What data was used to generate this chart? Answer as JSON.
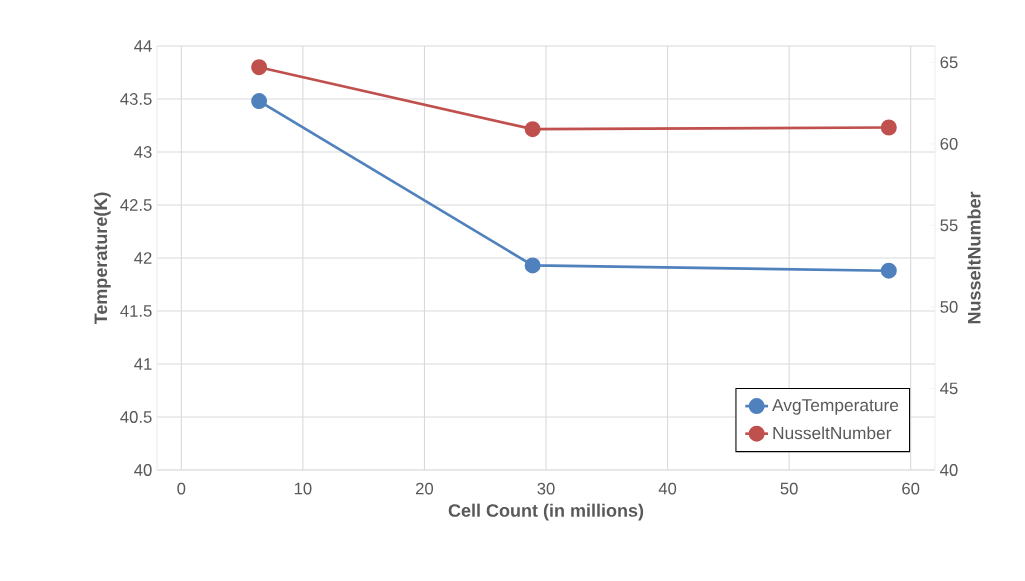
{
  "chart_data": {
    "type": "line",
    "xlabel": "Cell Count (in millions)",
    "ylabel": "Temperature(K)",
    "y2label": "NusseltNumber",
    "x": [
      6.4,
      28.9,
      58.2
    ],
    "series": [
      {
        "name": "AvgTemperature",
        "color": "#4f81bd",
        "values": [
          43.48,
          41.93,
          41.88
        ]
      },
      {
        "name": "NusseltNumber",
        "color": "#c0504d",
        "values": [
          64.7,
          60.9,
          61.0
        ],
        "axis": "y2"
      }
    ],
    "xlim": [
      -2,
      62
    ],
    "xticks": [
      0,
      10,
      20,
      30,
      40,
      50,
      60
    ],
    "ylim": [
      40,
      44
    ],
    "yticks": [
      40,
      40.5,
      41,
      41.5,
      42,
      42.5,
      43,
      43.5,
      44
    ],
    "y2lim": [
      40,
      66
    ],
    "y2ticks": [
      40,
      45,
      50,
      55,
      60,
      65
    ],
    "grid": true,
    "legend": "bottom right",
    "marker": "circle",
    "line_style": "solid"
  }
}
